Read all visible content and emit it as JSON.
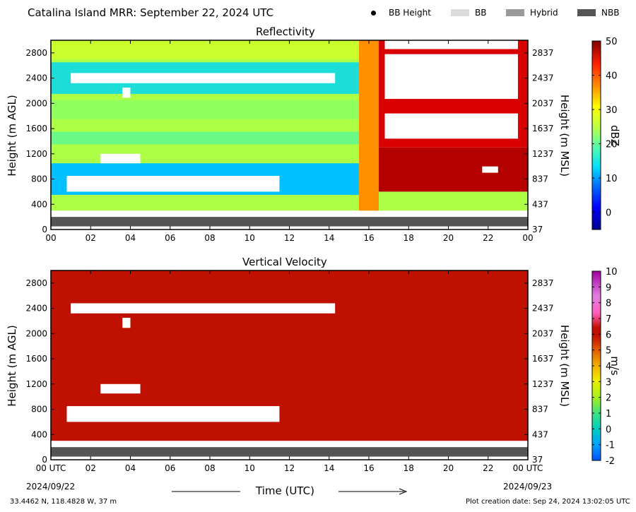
{
  "header": {
    "title": "Catalina Island MRR:  September 22, 2024 UTC",
    "legend": [
      {
        "label": "BB Height",
        "symbol": "dot",
        "color": "#000000"
      },
      {
        "label": "BB",
        "symbol": "box",
        "color": "#dcdcdc"
      },
      {
        "label": "Hybrid",
        "symbol": "box",
        "color": "#9a9a9a"
      },
      {
        "label": "NBB",
        "symbol": "box",
        "color": "#555555"
      }
    ]
  },
  "chart_data": [
    {
      "type": "heatmap",
      "title": "Reflectivity",
      "ylabel": "Height (m AGL)",
      "ylabel_right": "Height (m MSL)",
      "x_ticks": [
        "00",
        "02",
        "04",
        "06",
        "08",
        "10",
        "12",
        "14",
        "16",
        "18",
        "20",
        "22",
        "00"
      ],
      "y_ticks": [
        0,
        400,
        800,
        1200,
        1600,
        2000,
        2400,
        2800
      ],
      "y_ticks_right": [
        "37",
        "437",
        "837",
        "1237",
        "1637",
        "2037",
        "2437",
        "2837"
      ],
      "xlim": [
        0,
        24
      ],
      "ylim": [
        0,
        3000
      ],
      "colorbar": {
        "label": "dBZ",
        "ticks": [
          0,
          10,
          20,
          30,
          40,
          50
        ],
        "range": [
          -5,
          50
        ]
      },
      "regions": [
        {
          "x0": 0,
          "x1": 16.5,
          "y0": 300,
          "y1": 3000,
          "value": 22
        },
        {
          "x0": 0,
          "x1": 15.5,
          "y0": 550,
          "y1": 1050,
          "value": 10
        },
        {
          "x0": 0,
          "x1": 15.5,
          "y0": 1350,
          "y1": 1550,
          "value": 18
        },
        {
          "x0": 0,
          "x1": 15.5,
          "y0": 2150,
          "y1": 2650,
          "value": 13
        },
        {
          "x0": 0,
          "x1": 15.5,
          "y0": 1750,
          "y1": 2050,
          "value": 20
        },
        {
          "x0": 0,
          "x1": 15.5,
          "y0": 2700,
          "y1": 3000,
          "value": 24
        },
        {
          "x0": 15.5,
          "x1": 16.5,
          "y0": 300,
          "y1": 3000,
          "value": 35
        },
        {
          "x0": 16.5,
          "x1": 24,
          "y0": 300,
          "y1": 600,
          "value": 22
        },
        {
          "x0": 16.5,
          "x1": 24,
          "y0": 600,
          "y1": 1300,
          "value": 47
        },
        {
          "x0": 16.5,
          "x1": 24,
          "y0": 1300,
          "y1": 3000,
          "value": 45
        }
      ],
      "gaps": [
        {
          "x0": 0.8,
          "x1": 11.5,
          "y0": 600,
          "y1": 850
        },
        {
          "x0": 1.0,
          "x1": 14.3,
          "y0": 2320,
          "y1": 2480
        },
        {
          "x0": 2.5,
          "x1": 4.5,
          "y0": 1050,
          "y1": 1200
        },
        {
          "x0": 3.6,
          "x1": 4.0,
          "y0": 2090,
          "y1": 2250
        },
        {
          "x0": 16.8,
          "x1": 23.5,
          "y0": 2070,
          "y1": 2780
        },
        {
          "x0": 16.8,
          "x1": 23.5,
          "y0": 1440,
          "y1": 1840
        },
        {
          "x0": 16.8,
          "x1": 23.5,
          "y0": 2860,
          "y1": 3000
        },
        {
          "x0": 21.7,
          "x1": 22.5,
          "y0": 900,
          "y1": 1000
        }
      ],
      "nbb_band": {
        "x0": 0,
        "x1": 24,
        "y0": 50,
        "y1": 200
      }
    },
    {
      "type": "heatmap",
      "title": "Vertical Velocity",
      "ylabel": "Height (m AGL)",
      "ylabel_right": "Height (m MSL)",
      "x_ticks": [
        "00 UTC",
        "02",
        "04",
        "06",
        "08",
        "10",
        "12",
        "14",
        "16",
        "18",
        "20",
        "22",
        "00 UTC"
      ],
      "y_ticks": [
        0,
        400,
        800,
        1200,
        1600,
        2000,
        2400,
        2800
      ],
      "y_ticks_right": [
        "37",
        "437",
        "837",
        "1237",
        "1637",
        "2037",
        "2437",
        "2837"
      ],
      "xlim": [
        0,
        24
      ],
      "ylim": [
        0,
        3000
      ],
      "colorbar": {
        "label": "m/s",
        "ticks": [
          -2,
          -1,
          0,
          1,
          2,
          3,
          4,
          5,
          6,
          7,
          8,
          9,
          10
        ],
        "range": [
          -2,
          10
        ]
      },
      "regions": [
        {
          "x0": 0,
          "x1": 24,
          "y0": 300,
          "y1": 3000,
          "value": 6
        }
      ],
      "gaps": [
        {
          "x0": 0.8,
          "x1": 11.5,
          "y0": 600,
          "y1": 850
        },
        {
          "x0": 1.0,
          "x1": 14.3,
          "y0": 2320,
          "y1": 2480
        },
        {
          "x0": 2.5,
          "x1": 4.5,
          "y0": 1050,
          "y1": 1200
        },
        {
          "x0": 3.6,
          "x1": 4.0,
          "y0": 2090,
          "y1": 2250
        }
      ],
      "nbb_band": {
        "x0": 0,
        "x1": 24,
        "y0": 50,
        "y1": 200
      }
    }
  ],
  "footer": {
    "date_left": "2024/09/22",
    "date_right": "2024/09/23",
    "xlabel": "Time (UTC)",
    "location": "33.4462 N, 118.4828 W, 37 m",
    "creation": "Plot creation date: Sep 24, 2024 13:02:05 UTC"
  }
}
